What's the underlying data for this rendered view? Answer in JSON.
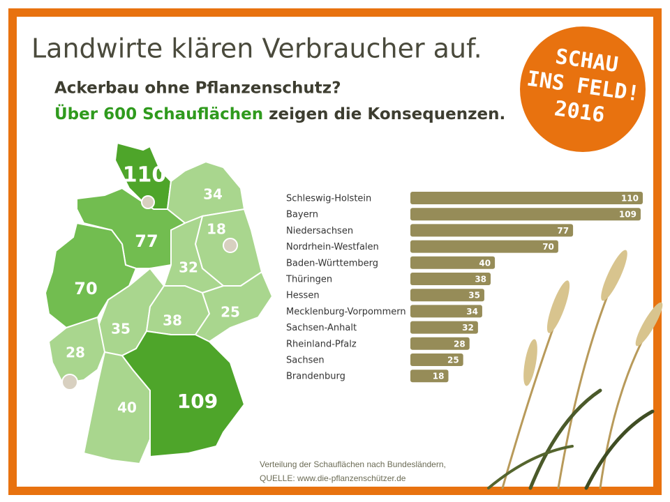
{
  "chart_data": {
    "type": "bar",
    "orientation": "horizontal",
    "title": "Landwirte klären Verbraucher auf.",
    "subtitle": "Ackerbau ohne Pflanzenschutz?",
    "subtitle_highlight": "Über 600 Schauflächen",
    "subtitle_rest": " zeigen die Konsequenzen.",
    "badge": [
      "SCHAU",
      "INS FELD!",
      "2016"
    ],
    "categories": [
      "Schleswig-Holstein",
      "Bayern",
      "Niedersachsen",
      "Nordrhein-Westfalen",
      "Baden-Württemberg",
      "Thüringen",
      "Hessen",
      "Mecklenburg-Vorpommern",
      "Sachsen-Anhalt",
      "Rheinland-Pfalz",
      "Sachsen",
      "Brandenburg"
    ],
    "values": [
      110,
      109,
      77,
      70,
      40,
      38,
      35,
      34,
      32,
      28,
      25,
      18
    ],
    "color": "#968c58",
    "notes": [
      "Verteilung der Schauflächen nach Bundesländern,",
      "QUELLE: www.die-pflanzenschützer.de"
    ]
  }
}
